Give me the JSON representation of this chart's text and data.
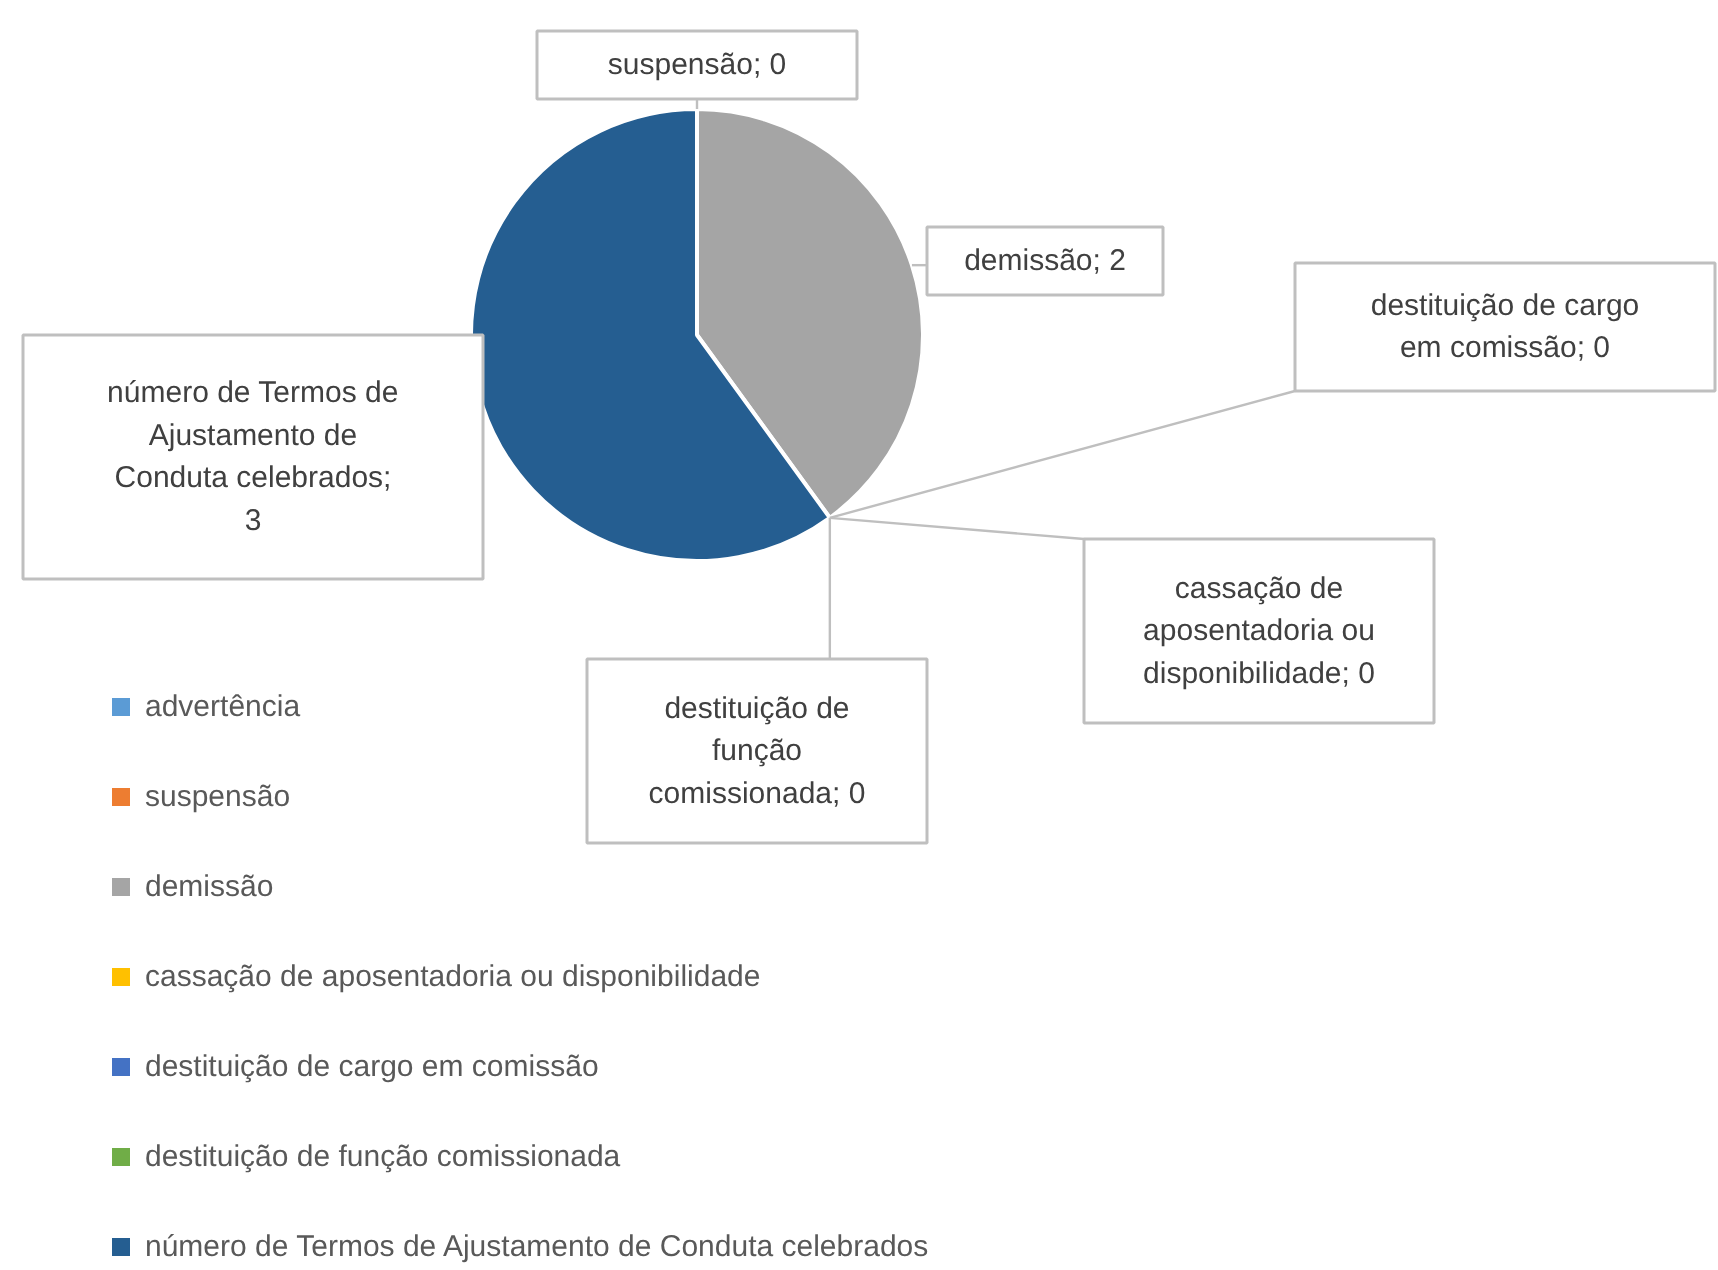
{
  "chart_data": {
    "type": "pie",
    "categories": [
      "advertência",
      "suspensão",
      "demissão",
      "cassação de aposentadoria ou disponibilidade",
      "destituição de cargo em comissão",
      "destituição de função comissionada",
      "número de Termos de Ajustamento de Conduta celebrados"
    ],
    "values": [
      0,
      0,
      2,
      0,
      0,
      0,
      3
    ],
    "colors": [
      "#5b9bd5",
      "#ed7d31",
      "#a5a5a5",
      "#ffc000",
      "#4472c4",
      "#70ad47",
      "#255e91"
    ],
    "value_labels": [
      null,
      "suspensão; 0",
      "demissão; 2",
      "cassação de aposentadoria ou disponibilidade; 0",
      "destituição de cargo em comissão; 0",
      "destituição de função comissionada; 0",
      "número de Termos de Ajustamento de Conduta celebrados; 3"
    ],
    "legend": "bottom"
  }
}
